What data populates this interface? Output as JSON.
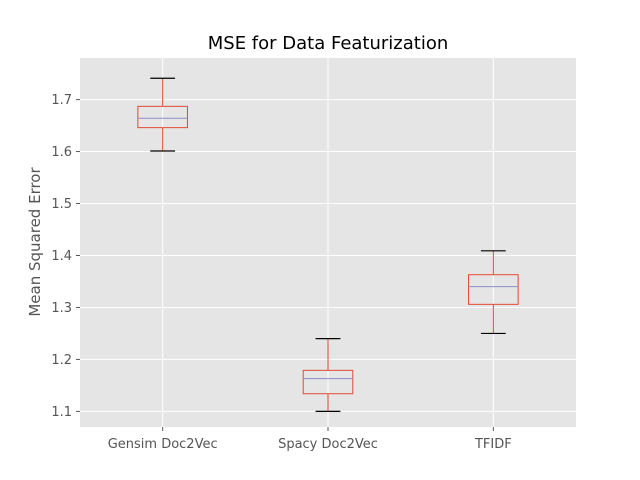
{
  "chart_data": {
    "type": "box",
    "title": "MSE for Data Featurization",
    "xlabel": "",
    "ylabel": "Mean Squared Error",
    "ylim": [
      1.07,
      1.78
    ],
    "yticks": [
      "1.1",
      "1.2",
      "1.3",
      "1.4",
      "1.5",
      "1.6",
      "1.7"
    ],
    "grid": true,
    "style": "ggplot",
    "colors": {
      "background": "#e5e5e5",
      "grid": "#ffffff",
      "box": "#e24a33",
      "median": "#8e8ec6",
      "cap": "#000000"
    },
    "categories": [
      "Gensim Doc2Vec",
      "Spacy Doc2Vec",
      "TFIDF"
    ],
    "boxes": [
      {
        "name": "Gensim Doc2Vec",
        "whislo": 1.601,
        "q1": 1.646,
        "med": 1.664,
        "q3": 1.687,
        "whishi": 1.741
      },
      {
        "name": "Spacy Doc2Vec",
        "whislo": 1.1,
        "q1": 1.134,
        "med": 1.163,
        "q3": 1.179,
        "whishi": 1.24
      },
      {
        "name": "TFIDF",
        "whislo": 1.25,
        "q1": 1.306,
        "med": 1.34,
        "q3": 1.363,
        "whishi": 1.409
      }
    ]
  }
}
